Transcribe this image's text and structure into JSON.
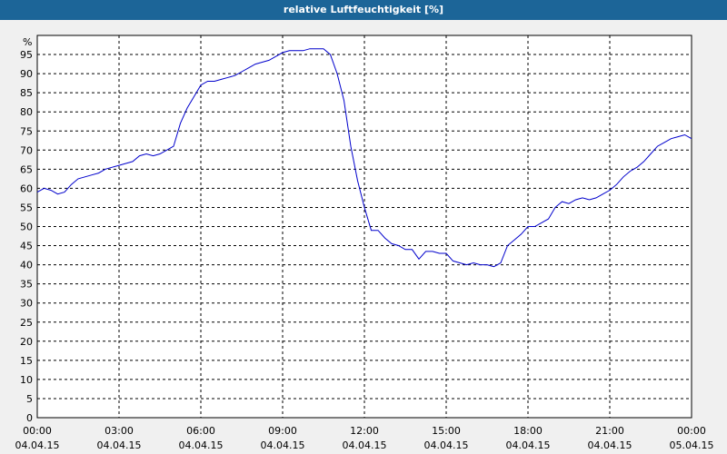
{
  "window": {
    "title": "relative Luftfeuchtigkeit [%]"
  },
  "colors": {
    "titlebar": "#1c6598",
    "background": "#f0f0f0",
    "plot_background": "#ffffff",
    "grid": "#000000",
    "series": "#0000cc"
  },
  "chart_data": {
    "type": "line",
    "title": "relative Luftfeuchtigkeit [%]",
    "ylabel": "%",
    "xlabel": "",
    "ylim": [
      0,
      100
    ],
    "yticks": [
      0,
      5,
      10,
      15,
      20,
      25,
      30,
      35,
      40,
      45,
      50,
      55,
      60,
      65,
      70,
      75,
      80,
      85,
      90,
      95
    ],
    "xlim_hours": [
      0,
      24
    ],
    "xticks": [
      {
        "time": "00:00",
        "date": "04.04.15"
      },
      {
        "time": "03:00",
        "date": "04.04.15"
      },
      {
        "time": "06:00",
        "date": "04.04.15"
      },
      {
        "time": "09:00",
        "date": "04.04.15"
      },
      {
        "time": "12:00",
        "date": "04.04.15"
      },
      {
        "time": "15:00",
        "date": "04.04.15"
      },
      {
        "time": "18:00",
        "date": "04.04.15"
      },
      {
        "time": "21:00",
        "date": "04.04.15"
      },
      {
        "time": "00:00",
        "date": "05.04.15"
      }
    ],
    "grid": true,
    "legend": "none",
    "series": [
      {
        "x_hours": [
          0.0,
          0.25,
          0.5,
          0.75,
          1.0,
          1.25,
          1.5,
          1.75,
          2.0,
          2.25,
          2.5,
          2.75,
          3.0,
          3.25,
          3.5,
          3.75,
          4.0,
          4.25,
          4.5,
          4.75,
          5.0,
          5.25,
          5.5,
          5.75,
          6.0,
          6.25,
          6.5,
          6.75,
          7.0,
          7.25,
          7.5,
          7.75,
          8.0,
          8.25,
          8.5,
          8.75,
          9.0,
          9.25,
          9.5,
          9.75,
          10.0,
          10.25,
          10.5,
          10.75,
          11.0,
          11.25,
          11.5,
          11.75,
          12.0,
          12.25,
          12.5,
          12.75,
          13.0,
          13.25,
          13.5,
          13.75,
          14.0,
          14.25,
          14.5,
          14.75,
          15.0,
          15.25,
          15.5,
          15.75,
          16.0,
          16.25,
          16.5,
          16.75,
          17.0,
          17.25,
          17.5,
          17.75,
          18.0,
          18.25,
          18.5,
          18.75,
          19.0,
          19.25,
          19.5,
          19.75,
          20.0,
          20.25,
          20.5,
          20.75,
          21.0,
          21.25,
          21.5,
          21.75,
          22.0,
          22.25,
          22.5,
          22.75,
          23.0,
          23.25,
          23.5,
          23.75,
          24.0
        ],
        "values": [
          59,
          60,
          59.5,
          58.5,
          59,
          61,
          62.5,
          63,
          63.5,
          64,
          65,
          65.5,
          66,
          66.5,
          67,
          68.5,
          69,
          68.5,
          69,
          70,
          71,
          77,
          81,
          84,
          87,
          88,
          88,
          88.5,
          89,
          89.5,
          90.5,
          91.5,
          92.5,
          93,
          93.5,
          94.5,
          95.5,
          96,
          96,
          96,
          96.5,
          96.5,
          96.5,
          95,
          90,
          83,
          71,
          62,
          55,
          49,
          49,
          47,
          45.5,
          45,
          44,
          44,
          41.5,
          43.5,
          43.5,
          43,
          43,
          41,
          40.5,
          40,
          40.5,
          40,
          40,
          39.5,
          40.5,
          45,
          46.5,
          48,
          50,
          50,
          51,
          52,
          55,
          56.5,
          56,
          57,
          57.5,
          57,
          57.5,
          58.5,
          59.5,
          61,
          63,
          64.5,
          65.5,
          67,
          69,
          71,
          72,
          73,
          73.5,
          74,
          73
        ]
      }
    ]
  }
}
